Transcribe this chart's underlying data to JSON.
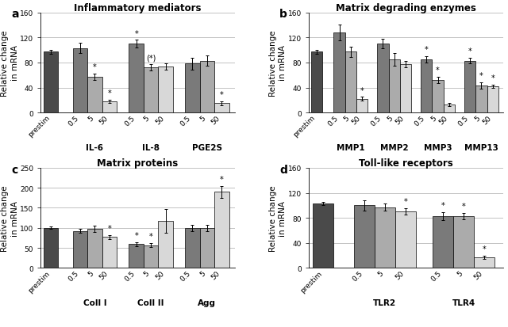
{
  "panels": {
    "a": {
      "title": "Inflammatory mediators",
      "ylim": [
        0,
        160
      ],
      "yticks": [
        0,
        40,
        80,
        120,
        160
      ],
      "groups": [
        "IL-6",
        "IL-8",
        "PGE2S"
      ],
      "prestim": 97,
      "prestim_err": 3,
      "bars": {
        "IL-6": {
          "vals": [
            103,
            57,
            18
          ],
          "errs": [
            8,
            5,
            3
          ]
        },
        "IL-8": {
          "vals": [
            110,
            72,
            73
          ],
          "errs": [
            6,
            5,
            5
          ]
        },
        "PGE2S": {
          "vals": [
            78,
            83,
            15
          ],
          "errs": [
            9,
            8,
            3
          ]
        }
      },
      "annotations": {
        "IL-6": [
          "",
          "*",
          "*"
        ],
        "IL-8": [
          "*",
          "(*)",
          ""
        ],
        "PGE2S": [
          "",
          "",
          "*"
        ]
      }
    },
    "b": {
      "title": "Matrix degrading enzymes",
      "ylim": [
        0,
        160
      ],
      "yticks": [
        0,
        40,
        80,
        120,
        160
      ],
      "groups": [
        "MMP1",
        "MMP2",
        "MMP3",
        "MMP13"
      ],
      "prestim": 97,
      "prestim_err": 3,
      "bars": {
        "MMP1": {
          "vals": [
            128,
            97,
            22
          ],
          "errs": [
            13,
            8,
            3
          ]
        },
        "MMP2": {
          "vals": [
            110,
            85,
            77
          ],
          "errs": [
            8,
            10,
            5
          ]
        },
        "MMP3": {
          "vals": [
            85,
            52,
            13
          ],
          "errs": [
            5,
            5,
            3
          ]
        },
        "MMP13": {
          "vals": [
            83,
            43,
            42
          ],
          "errs": [
            5,
            5,
            3
          ]
        }
      },
      "annotations": {
        "MMP1": [
          "",
          "",
          "*"
        ],
        "MMP2": [
          "",
          "",
          ""
        ],
        "MMP3": [
          "*",
          "*",
          ""
        ],
        "MMP13": [
          "*",
          "*",
          "*"
        ]
      }
    },
    "c": {
      "title": "Matrix proteins",
      "ylim": [
        0,
        250
      ],
      "yticks": [
        0,
        50,
        100,
        150,
        200,
        250
      ],
      "groups": [
        "Coll I",
        "Coll II",
        "Agg"
      ],
      "prestim": 100,
      "prestim_err": 3,
      "bars": {
        "Coll I": {
          "vals": [
            92,
            98,
            77
          ],
          "errs": [
            5,
            8,
            5
          ]
        },
        "Coll II": {
          "vals": [
            60,
            57,
            117
          ],
          "errs": [
            5,
            5,
            30
          ]
        },
        "Agg": {
          "vals": [
            100,
            100,
            190
          ],
          "errs": [
            8,
            8,
            15
          ]
        }
      },
      "annotations": {
        "Coll I": [
          "",
          "",
          "*"
        ],
        "Coll II": [
          "*",
          "*",
          ""
        ],
        "Agg": [
          "",
          "",
          "*"
        ]
      }
    },
    "d": {
      "title": "Toll-like receptors",
      "ylim": [
        0,
        160
      ],
      "yticks": [
        0,
        40,
        80,
        120,
        160
      ],
      "groups": [
        "TLR2",
        "TLR4"
      ],
      "prestim": 103,
      "prestim_err": 3,
      "bars": {
        "TLR2": {
          "vals": [
            100,
            97,
            90
          ],
          "errs": [
            8,
            6,
            5
          ]
        },
        "TLR4": {
          "vals": [
            83,
            83,
            17
          ],
          "errs": [
            6,
            5,
            3
          ]
        }
      },
      "annotations": {
        "TLR2": [
          "",
          "",
          "*"
        ],
        "TLR4": [
          "*",
          "*",
          "*"
        ]
      }
    }
  },
  "bar_colors": {
    "prestim": "#4a4a4a",
    "0.5": "#7a7a7a",
    "5": "#ababab",
    "50": "#d8d8d8"
  },
  "ylabel": "Relative change\nin mRNA",
  "label_fontsize": 7.5,
  "title_fontsize": 8.5,
  "axis_fontsize": 6.5,
  "group_label_fontsize": 7.5,
  "annot_fontsize": 7
}
